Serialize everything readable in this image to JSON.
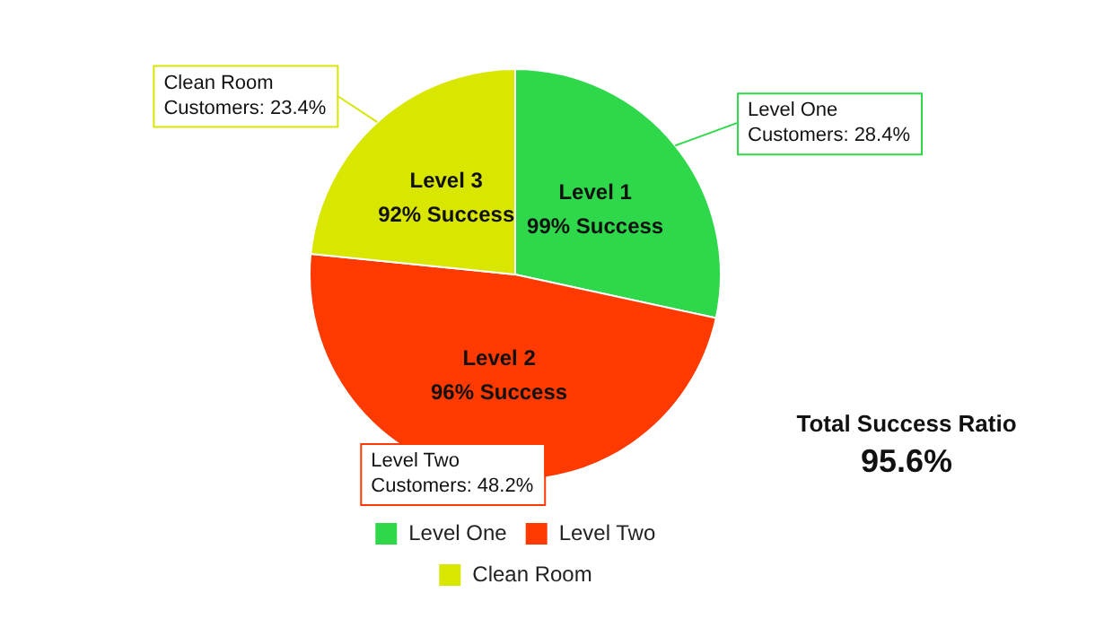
{
  "chart_data": {
    "type": "pie",
    "categories": [
      "Level One",
      "Level Two",
      "Clean Room"
    ],
    "values": [
      28.4,
      48.2,
      23.4
    ],
    "colors": [
      "#2ed84a",
      "#ff3a00",
      "#d9e600"
    ],
    "value_labels": [
      "Customers: 28.4%",
      "Customers: 48.2%",
      "Customers: 23.4%"
    ],
    "annotations": [
      {
        "text": "Level 1\n99% Success",
        "x": "Level One"
      },
      {
        "text": "Level 2\n96% Success",
        "x": "Level Two"
      },
      {
        "text": "Level 3\n92% Success",
        "x": "Clean Room"
      },
      "Total Success Ratio",
      "95.6%"
    ],
    "legend": "bottom"
  }
}
